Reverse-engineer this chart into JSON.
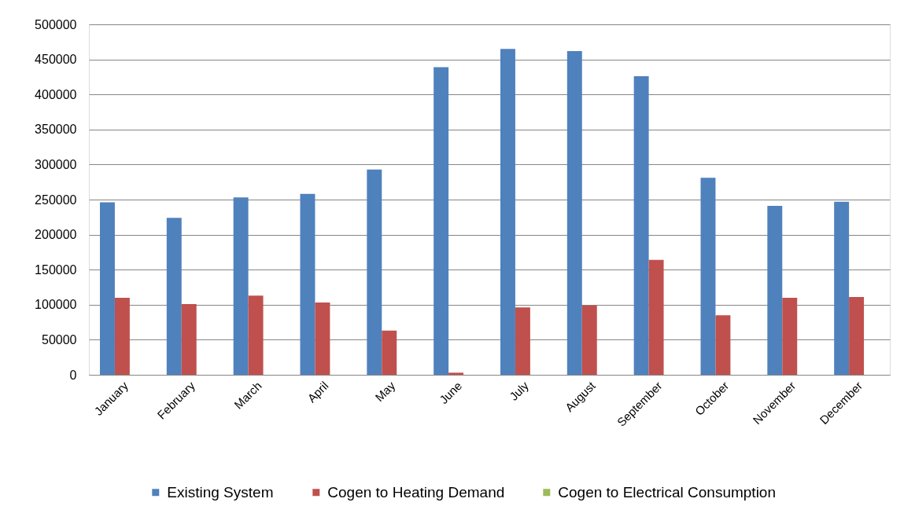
{
  "chart_data": {
    "type": "bar",
    "categories": [
      "January",
      "February",
      "March",
      "April",
      "May",
      "June",
      "July",
      "August",
      "September",
      "October",
      "November",
      "December"
    ],
    "series": [
      {
        "name": "Existing System",
        "color": "#4f81bd",
        "values": [
          246000,
          224000,
          253000,
          258000,
          293000,
          439000,
          465000,
          462000,
          426000,
          281000,
          241000,
          247000
        ]
      },
      {
        "name": "Cogen to Heating Demand",
        "color": "#c0504d",
        "values": [
          110000,
          101000,
          113000,
          103000,
          63000,
          3000,
          96000,
          99000,
          164000,
          85000,
          110000,
          111000
        ]
      },
      {
        "name": "Cogen to Electrical Consumption",
        "color": "#9bbb59",
        "values": [
          null,
          null,
          null,
          null,
          null,
          null,
          null,
          null,
          null,
          null,
          null,
          null
        ]
      }
    ],
    "ylim": [
      0,
      500000
    ],
    "yticks": [
      0,
      50000,
      100000,
      150000,
      200000,
      250000,
      300000,
      350000,
      400000,
      450000,
      500000
    ],
    "grid": "y",
    "legend": "bottom"
  }
}
